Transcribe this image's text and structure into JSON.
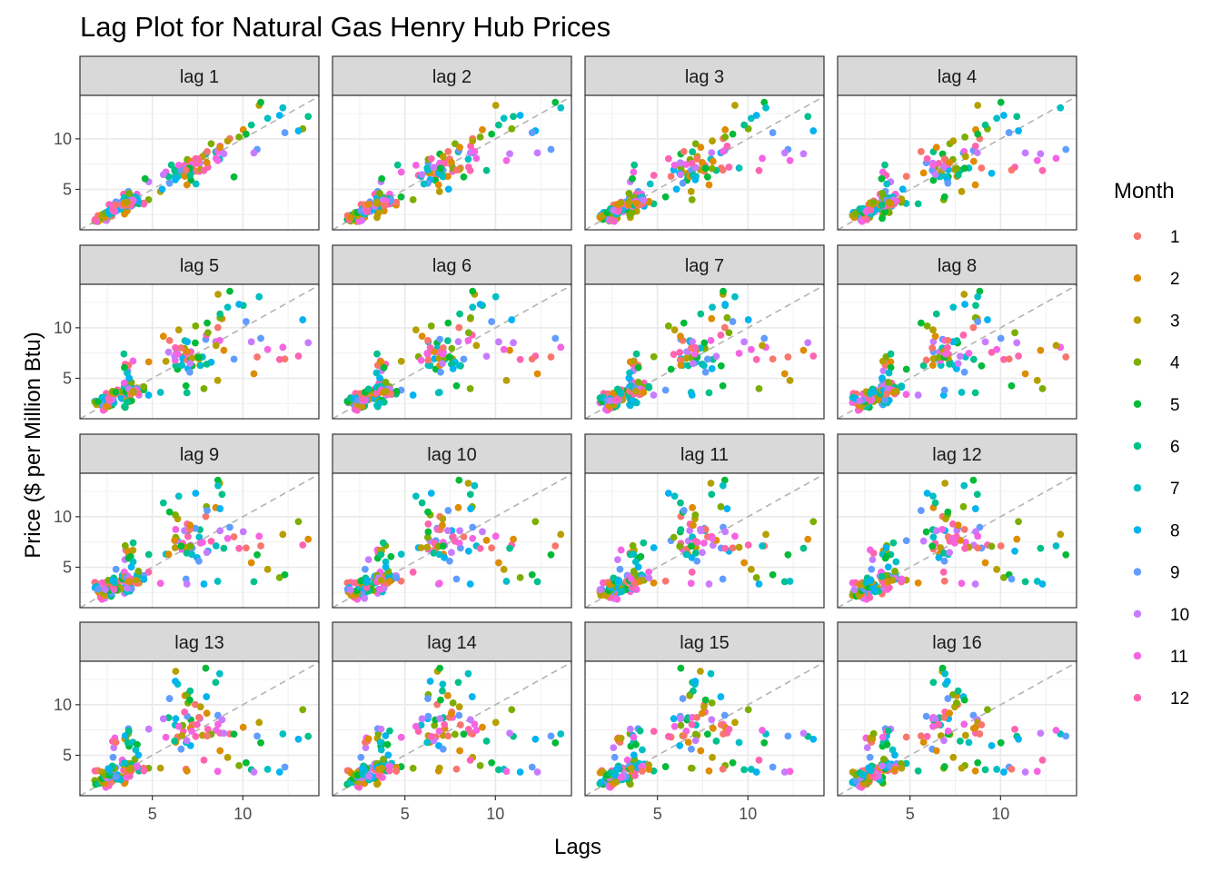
{
  "chart_data": {
    "type": "scatter",
    "title": "Lag Plot for Natural Gas Henry Hub Prices",
    "xlabel": "Lags",
    "ylabel": "Price ($ per Million Btu)",
    "xlim": [
      1.0,
      14.2
    ],
    "ylim": [
      1.0,
      14.3
    ],
    "x_ticks": [
      5,
      10
    ],
    "y_ticks": [
      5,
      10
    ],
    "facet_layout": {
      "rows": 4,
      "cols": 4
    },
    "facets": [
      "lag 1",
      "lag 2",
      "lag 3",
      "lag 4",
      "lag 5",
      "lag 6",
      "lag 7",
      "lag 8",
      "lag 9",
      "lag 10",
      "lag 11",
      "lag 12",
      "lag 13",
      "lag 14",
      "lag 15",
      "lag 16"
    ],
    "reference_line": "y = x (dashed, grey)",
    "legend": {
      "title": "Month",
      "placement": "right",
      "entries": [
        "1",
        "2",
        "3",
        "4",
        "5",
        "6",
        "7",
        "8",
        "9",
        "10",
        "11",
        "12"
      ],
      "colors": [
        "#F8766D",
        "#DE8C00",
        "#B79F00",
        "#7CAE00",
        "#00BA38",
        "#00C08B",
        "#00BFC4",
        "#00B4F0",
        "#619CFF",
        "#C77CFF",
        "#F564E3",
        "#FF64B0"
      ]
    },
    "series_source": "Monthly Henry Hub spot price; panel 'lag k' plots price(t) against price(t-k), colored by month of t",
    "prices": [
      2.34,
      2.0,
      1.82,
      1.87,
      2.03,
      2.27,
      2.45,
      2.72,
      2.75,
      2.58,
      2.61,
      3.5,
      3.46,
      2.56,
      2.23,
      2.5,
      2.13,
      2.2,
      2.32,
      2.39,
      2.47,
      2.43,
      2.6,
      2.77,
      2.37,
      2.22,
      2.14,
      2.24,
      2.36,
      2.29,
      2.35,
      2.62,
      2.47,
      1.92,
      1.83,
      2.0,
      2.4,
      2.22,
      2.4,
      2.64,
      2.71,
      3.06,
      3.1,
      2.98,
      2.83,
      2.78,
      3.46,
      3.46,
      3.48,
      3.28,
      3.33,
      3.05,
      3.02,
      3.26,
      3.07,
      2.99,
      3.76,
      3.57,
      3.74,
      3.85,
      3.61,
      2.88,
      2.84,
      2.71,
      2.79,
      2.64,
      2.57,
      2.83,
      2.87,
      2.93,
      2.8,
      2.99,
      3.48,
      3.53,
      3.67,
      3.71,
      3.64,
      3.93,
      3.5,
      3.68,
      4.8,
      5.75,
      6.71,
      6.39,
      6.29,
      6.63,
      6.68,
      7.13,
      5.9,
      6.26,
      6.29,
      6.93,
      7.63,
      7.59,
      6.78,
      7.37,
      6.8,
      6.29,
      6.93,
      7.95,
      8.5,
      8.72,
      7.99,
      8.62,
      8.85,
      8.63,
      8.74,
      9.28,
      10.02,
      10.9,
      13.31,
      10.99,
      13.61,
      12.21,
      13.07,
      10.79,
      8.95,
      8.52,
      8.07,
      7.2,
      7.11,
      7.77,
      8.25,
      9.51,
      6.23,
      6.87,
      7.11,
      6.59,
      6.9,
      7.18,
      7.47,
      7.57,
      8.01,
      7.66,
      6.97,
      7.07,
      7.09,
      6.4,
      6.27,
      5.95,
      5.61,
      6.46,
      7.39,
      8.03,
      8.74,
      9.16,
      9.79,
      10.18,
      10.47,
      11.37,
      12.03,
      12.32,
      10.61,
      8.61,
      7.85,
      6.86,
      6.91,
      5.45,
      4.79,
      3.98,
      4.26,
      3.57,
      3.61,
      3.34,
      3.83,
      3.34,
      3.41,
      4.52,
      3.63,
      3.45,
      3.73,
      3.72,
      3.87,
      3.45,
      4.19,
      4.12,
      4.16,
      4.15,
      4.53,
      3.55,
      3.73,
      3.81,
      4.04,
      4.16,
      3.7,
      4.08,
      4.23,
      3.8,
      3.94,
      3.94,
      3.84,
      3.46,
      3.43,
      3.61,
      3.72,
      4.6,
      6.05,
      7.41,
      5.54,
      5.02
    ],
    "start_month": 1
  }
}
